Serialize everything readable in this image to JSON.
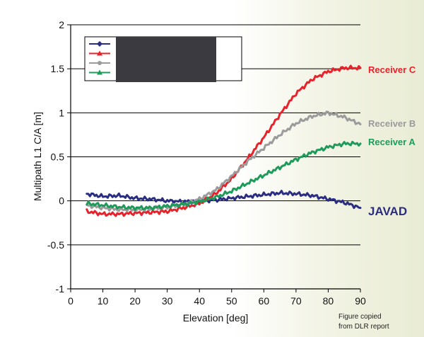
{
  "chart_data": {
    "type": "line",
    "title": "",
    "xlabel": "Elevation [deg]",
    "ylabel": "Multipath L1 C/A [m]",
    "xlim": [
      0,
      90
    ],
    "ylim": [
      -1,
      2
    ],
    "x_ticks": [
      "0",
      "10",
      "20",
      "30",
      "40",
      "50",
      "60",
      "70",
      "80",
      "90"
    ],
    "y_ticks": [
      "-1",
      "-0.5",
      "0",
      "0.5",
      "1",
      "1.5",
      "2"
    ],
    "grid": "horizontal",
    "legend_position": "top-left",
    "legend_entries": [
      "",
      "",
      "",
      ""
    ],
    "legend_redacted": true,
    "series": [
      {
        "label": "JAVAD",
        "color": "#2b2d82",
        "x": [
          5,
          10,
          15,
          20,
          25,
          30,
          35,
          40,
          45,
          50,
          55,
          60,
          65,
          70,
          75,
          80,
          85,
          90
        ],
        "y": [
          0.08,
          0.05,
          0.06,
          0.03,
          0.02,
          0.0,
          -0.01,
          0.0,
          0.01,
          0.03,
          0.05,
          0.07,
          0.09,
          0.08,
          0.06,
          0.02,
          -0.02,
          -0.08
        ]
      },
      {
        "label": "Receiver C",
        "color": "#e8222b",
        "x": [
          5,
          10,
          15,
          20,
          25,
          30,
          35,
          40,
          45,
          50,
          55,
          60,
          65,
          70,
          75,
          80,
          85,
          90
        ],
        "y": [
          -0.12,
          -0.15,
          -0.15,
          -0.14,
          -0.13,
          -0.12,
          -0.08,
          -0.03,
          0.08,
          0.25,
          0.48,
          0.72,
          0.98,
          1.22,
          1.38,
          1.47,
          1.51,
          1.51
        ]
      },
      {
        "label": "Receiver B",
        "color": "#9b9b9b",
        "x": [
          5,
          10,
          15,
          20,
          25,
          30,
          35,
          40,
          45,
          50,
          55,
          60,
          65,
          70,
          75,
          80,
          85,
          90
        ],
        "y": [
          -0.05,
          -0.08,
          -0.1,
          -0.1,
          -0.09,
          -0.07,
          -0.04,
          0.02,
          0.12,
          0.28,
          0.45,
          0.6,
          0.75,
          0.88,
          0.96,
          1.0,
          0.95,
          0.87
        ]
      },
      {
        "label": "Receiver A",
        "color": "#1e9a5a",
        "x": [
          5,
          10,
          15,
          20,
          25,
          30,
          35,
          40,
          45,
          50,
          55,
          60,
          65,
          70,
          75,
          80,
          85,
          90
        ],
        "y": [
          -0.03,
          -0.05,
          -0.07,
          -0.08,
          -0.08,
          -0.06,
          -0.04,
          -0.01,
          0.04,
          0.11,
          0.2,
          0.29,
          0.38,
          0.47,
          0.55,
          0.61,
          0.65,
          0.65
        ]
      }
    ],
    "annotation": "Figure copied\nfrom DLR report"
  }
}
